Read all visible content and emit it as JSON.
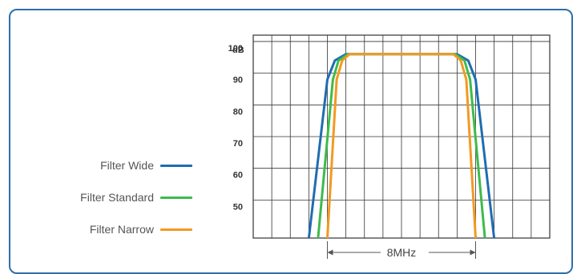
{
  "chart_data": {
    "type": "line",
    "ylabel": "dB",
    "y_ticks": [
      "100",
      "90",
      "80",
      "70",
      "60",
      "50"
    ],
    "y_tick_values": [
      100,
      90,
      80,
      70,
      60,
      50
    ],
    "ylim": [
      40,
      104
    ],
    "xlim": [
      0,
      16
    ],
    "grid": true,
    "legend_position": "left",
    "series": [
      {
        "name": "Filter Wide",
        "color": "#1f6db0",
        "x": [
          3.0,
          4.0,
          4.4,
          5.0,
          11.0,
          11.6,
          12.0,
          13.0
        ],
        "y": [
          40,
          90,
          96,
          98,
          98,
          96,
          90,
          40
        ]
      },
      {
        "name": "Filter Standard",
        "color": "#3dbb4c",
        "x": [
          3.5,
          4.3,
          4.6,
          5.1,
          10.9,
          11.4,
          11.7,
          12.5
        ],
        "y": [
          40,
          90,
          96,
          98,
          98,
          96,
          90,
          40
        ]
      },
      {
        "name": "Filter Narrow",
        "color": "#f29a22",
        "x": [
          4.0,
          4.5,
          4.8,
          5.2,
          10.8,
          11.2,
          11.5,
          12.0
        ],
        "y": [
          40,
          90,
          96,
          98,
          98,
          96,
          90,
          40
        ]
      }
    ],
    "annotation": {
      "label": "8MHz",
      "x_from": 4.0,
      "x_to": 12.0
    }
  }
}
